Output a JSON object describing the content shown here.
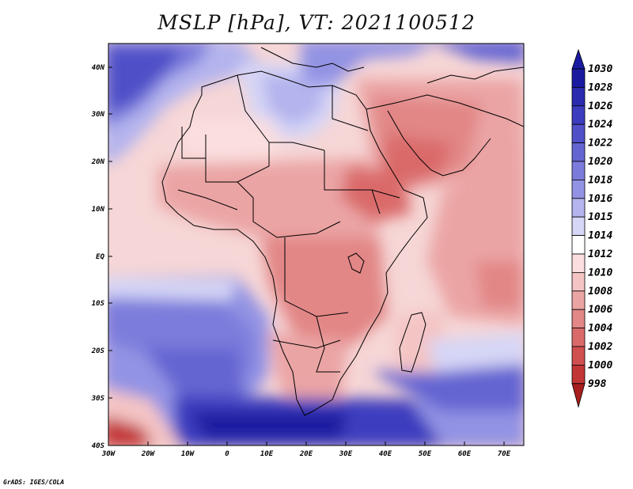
{
  "title": "MSLP [hPa], VT: 2021100512",
  "credit": "GrADS: IGES/COLA",
  "map": {
    "lat_labels": [
      "40N",
      "30N",
      "20N",
      "10N",
      "EQ",
      "10S",
      "20S",
      "30S",
      "40S"
    ],
    "lon_labels": [
      "30W",
      "20W",
      "10W",
      "0",
      "10E",
      "20E",
      "30E",
      "40E",
      "50E",
      "60E",
      "70E"
    ]
  },
  "colorbar": {
    "levels": [
      "1030",
      "1028",
      "1026",
      "1024",
      "1022",
      "1020",
      "1018",
      "1016",
      "1015",
      "1014",
      "1012",
      "1010",
      "1008",
      "1006",
      "1004",
      "1002",
      "1000",
      "998"
    ],
    "colors": {
      "1030": "#1a1aa0",
      "1028": "#2b2bb0",
      "1026": "#3c3cbf",
      "1024": "#5050c8",
      "1022": "#6565d2",
      "1020": "#7b7bdc",
      "1018": "#9393e4",
      "1016": "#b4b4ee",
      "1015": "#d6d6f6",
      "1014": "#ffffff",
      "1012": "#fbdede",
      "1010": "#f4c4c4",
      "1008": "#eba4a4",
      "1006": "#e28686",
      "1004": "#da6a6a",
      "1002": "#d04f4f",
      "1000": "#c23636",
      "998": "#a81e1e"
    }
  }
}
